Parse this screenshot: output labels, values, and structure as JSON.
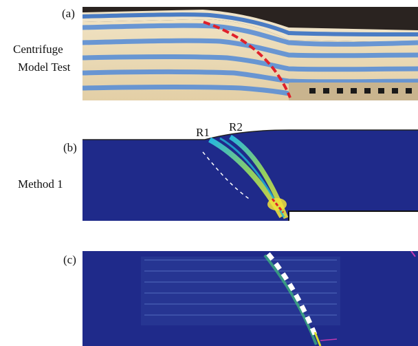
{
  "figure": {
    "panels": [
      {
        "id": "a",
        "tag": "(a)",
        "caption_lines": [
          "Centrifuge",
          "Model Test"
        ]
      },
      {
        "id": "b",
        "tag": "(b)",
        "caption_lines": [
          "Method 1"
        ],
        "annotations": [
          "R1",
          "R2"
        ]
      },
      {
        "id": "c",
        "tag": "(c)",
        "caption_lines": []
      }
    ]
  },
  "colors": {
    "model_bg": "#1f2a8a",
    "stripe": "#5b8fd6",
    "slip_line": "#e0202a",
    "sand": "#ead9b8"
  }
}
